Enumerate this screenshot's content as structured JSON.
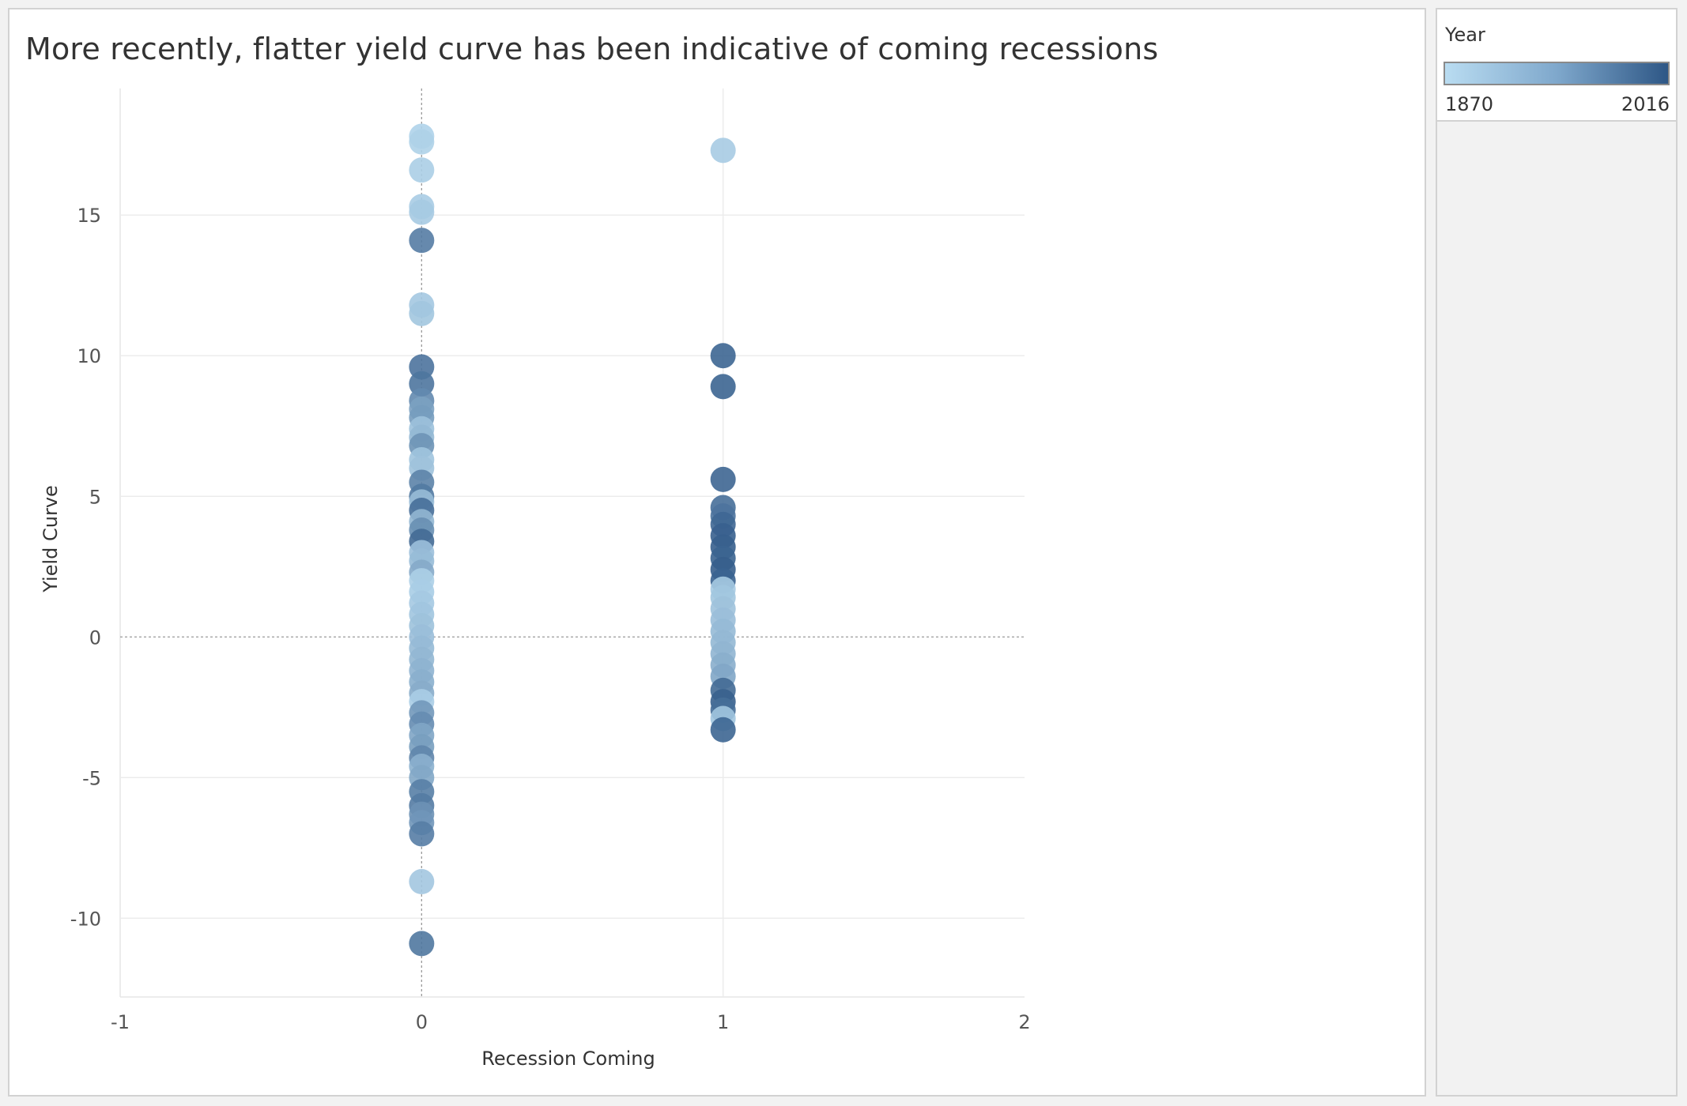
{
  "legend": {
    "title": "Year",
    "min_label": "1870",
    "max_label": "2016",
    "color_low": "#b9dcf1",
    "color_high": "#2e5786"
  },
  "chart_data": {
    "type": "scatter",
    "title": "More recently, flatter yield curve has been indicative of coming recessions",
    "xlabel": "Recession Coming",
    "ylabel": "Yield Curve",
    "xlim": [
      -1,
      2
    ],
    "ylim": [
      -12.8,
      19.5
    ],
    "x_ticks": [
      -1,
      0,
      1,
      2
    ],
    "y_ticks": [
      -10,
      -5,
      0,
      5,
      10,
      15
    ],
    "grid": true,
    "zero_lines": true,
    "legend_position": "top-right",
    "color_encoding": "Year",
    "points": [
      {
        "x": 0,
        "y": 17.8,
        "year": 1880
      },
      {
        "x": 0,
        "y": 17.6,
        "year": 1882
      },
      {
        "x": 0,
        "y": 16.6,
        "year": 1885
      },
      {
        "x": 0,
        "y": 15.3,
        "year": 1888
      },
      {
        "x": 0,
        "y": 15.1,
        "year": 1890
      },
      {
        "x": 0,
        "y": 14.1,
        "year": 1975
      },
      {
        "x": 0,
        "y": 11.8,
        "year": 1892
      },
      {
        "x": 0,
        "y": 11.5,
        "year": 1894
      },
      {
        "x": 0,
        "y": 9.6,
        "year": 1985
      },
      {
        "x": 0,
        "y": 9.0,
        "year": 1982
      },
      {
        "x": 0,
        "y": 8.4,
        "year": 1960
      },
      {
        "x": 0,
        "y": 8.1,
        "year": 1935
      },
      {
        "x": 0,
        "y": 7.8,
        "year": 1940
      },
      {
        "x": 0,
        "y": 7.4,
        "year": 1900
      },
      {
        "x": 0,
        "y": 7.1,
        "year": 1910
      },
      {
        "x": 0,
        "y": 6.8,
        "year": 1950
      },
      {
        "x": 0,
        "y": 6.3,
        "year": 1896
      },
      {
        "x": 0,
        "y": 6.0,
        "year": 1898
      },
      {
        "x": 0,
        "y": 5.5,
        "year": 1968
      },
      {
        "x": 0,
        "y": 5.0,
        "year": 1978
      },
      {
        "x": 0,
        "y": 4.8,
        "year": 1905
      },
      {
        "x": 0,
        "y": 4.5,
        "year": 1990
      },
      {
        "x": 0,
        "y": 4.1,
        "year": 1912
      },
      {
        "x": 0,
        "y": 3.8,
        "year": 1955
      },
      {
        "x": 0,
        "y": 3.4,
        "year": 1995
      },
      {
        "x": 0,
        "y": 3.0,
        "year": 1902
      },
      {
        "x": 0,
        "y": 2.7,
        "year": 1906
      },
      {
        "x": 0,
        "y": 2.3,
        "year": 1925
      },
      {
        "x": 0,
        "y": 2.0,
        "year": 1884
      },
      {
        "x": 0,
        "y": 1.6,
        "year": 1887
      },
      {
        "x": 0,
        "y": 1.2,
        "year": 1891
      },
      {
        "x": 0,
        "y": 0.8,
        "year": 1895
      },
      {
        "x": 0,
        "y": 0.4,
        "year": 1899
      },
      {
        "x": 0,
        "y": 0.0,
        "year": 1903
      },
      {
        "x": 0,
        "y": -0.4,
        "year": 1907
      },
      {
        "x": 0,
        "y": -0.8,
        "year": 1911
      },
      {
        "x": 0,
        "y": -1.2,
        "year": 1915
      },
      {
        "x": 0,
        "y": -1.6,
        "year": 1919
      },
      {
        "x": 0,
        "y": -2.0,
        "year": 1923
      },
      {
        "x": 0,
        "y": -2.3,
        "year": 1886
      },
      {
        "x": 0,
        "y": -2.7,
        "year": 1945
      },
      {
        "x": 0,
        "y": -3.1,
        "year": 1958
      },
      {
        "x": 0,
        "y": -3.5,
        "year": 1930
      },
      {
        "x": 0,
        "y": -3.9,
        "year": 1938
      },
      {
        "x": 0,
        "y": -4.3,
        "year": 1965
      },
      {
        "x": 0,
        "y": -4.6,
        "year": 1918
      },
      {
        "x": 0,
        "y": -5.0,
        "year": 1928
      },
      {
        "x": 0,
        "y": -5.5,
        "year": 1972
      },
      {
        "x": 0,
        "y": -6.0,
        "year": 1976
      },
      {
        "x": 0,
        "y": -6.3,
        "year": 1952
      },
      {
        "x": 0,
        "y": -6.6,
        "year": 1947
      },
      {
        "x": 0,
        "y": -7.0,
        "year": 1974
      },
      {
        "x": 0,
        "y": -8.7,
        "year": 1893
      },
      {
        "x": 0,
        "y": -10.9,
        "year": 1980
      },
      {
        "x": 1,
        "y": 17.3,
        "year": 1889
      },
      {
        "x": 1,
        "y": 10.0,
        "year": 2000
      },
      {
        "x": 1,
        "y": 8.9,
        "year": 2001
      },
      {
        "x": 1,
        "y": 5.6,
        "year": 1999
      },
      {
        "x": 1,
        "y": 4.6,
        "year": 1990
      },
      {
        "x": 1,
        "y": 4.3,
        "year": 1985
      },
      {
        "x": 1,
        "y": 4.0,
        "year": 1998
      },
      {
        "x": 1,
        "y": 3.6,
        "year": 2005
      },
      {
        "x": 1,
        "y": 3.2,
        "year": 2007
      },
      {
        "x": 1,
        "y": 2.8,
        "year": 2002
      },
      {
        "x": 1,
        "y": 2.4,
        "year": 2008
      },
      {
        "x": 1,
        "y": 2.0,
        "year": 2003
      },
      {
        "x": 1,
        "y": 1.7,
        "year": 1890
      },
      {
        "x": 1,
        "y": 1.4,
        "year": 1894
      },
      {
        "x": 1,
        "y": 1.0,
        "year": 1898
      },
      {
        "x": 1,
        "y": 0.6,
        "year": 1903
      },
      {
        "x": 1,
        "y": 0.2,
        "year": 1907
      },
      {
        "x": 1,
        "y": -0.2,
        "year": 1910
      },
      {
        "x": 1,
        "y": -0.6,
        "year": 1913
      },
      {
        "x": 1,
        "y": -1.0,
        "year": 1920
      },
      {
        "x": 1,
        "y": -1.4,
        "year": 1929
      },
      {
        "x": 1,
        "y": -1.9,
        "year": 1995
      },
      {
        "x": 1,
        "y": -2.3,
        "year": 2006
      },
      {
        "x": 1,
        "y": -2.6,
        "year": 1991
      },
      {
        "x": 1,
        "y": -2.9,
        "year": 1895
      },
      {
        "x": 1,
        "y": -3.3,
        "year": 2000
      }
    ]
  }
}
